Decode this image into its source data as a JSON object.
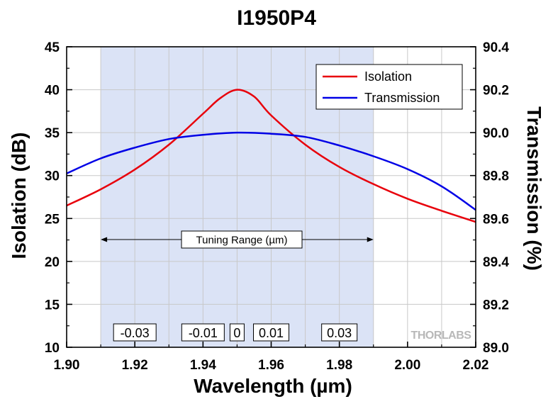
{
  "chart_data": {
    "type": "line",
    "title": "I1950P4",
    "xlabel": "Wavelength (µm)",
    "ylabel_left": "Isolation (dB)",
    "ylabel_right": "Transmission (%)",
    "xlim": [
      1.9,
      2.02
    ],
    "ylim_left": [
      10,
      45
    ],
    "ylim_right": [
      89.0,
      90.4
    ],
    "x_ticks": [
      "1.90",
      "1.92",
      "1.94",
      "1.96",
      "1.98",
      "2.00",
      "2.02"
    ],
    "y_left_ticks": [
      "10",
      "15",
      "20",
      "25",
      "30",
      "35",
      "40",
      "45"
    ],
    "y_right_ticks": [
      "89.0",
      "89.2",
      "89.4",
      "89.6",
      "89.8",
      "90.0",
      "90.2",
      "90.4"
    ],
    "grid": true,
    "legend_position": "top-right",
    "series": [
      {
        "name": "Isolation",
        "axis": "left",
        "color": "#e8000b",
        "x": [
          1.9,
          1.91,
          1.92,
          1.93,
          1.94,
          1.945,
          1.95,
          1.955,
          1.96,
          1.97,
          1.98,
          1.99,
          2.0,
          2.01,
          2.02
        ],
        "y": [
          26.5,
          28.4,
          30.7,
          33.6,
          37.2,
          39.0,
          40.0,
          39.2,
          37.0,
          33.6,
          31.0,
          29.0,
          27.3,
          25.9,
          24.6
        ]
      },
      {
        "name": "Transmission",
        "axis": "right",
        "color": "#0000e6",
        "x": [
          1.9,
          1.91,
          1.92,
          1.93,
          1.94,
          1.95,
          1.96,
          1.97,
          1.98,
          1.99,
          2.0,
          2.01,
          2.02
        ],
        "y": [
          89.81,
          89.88,
          89.93,
          89.97,
          89.99,
          90.0,
          89.995,
          89.98,
          89.94,
          89.89,
          89.83,
          89.75,
          89.64
        ]
      }
    ],
    "shaded_region": {
      "x_start": 1.91,
      "x_end": 1.99,
      "color": "#dbe3f6",
      "label": "Tuning Range (µm)"
    },
    "offset_labels": [
      {
        "text": "-0.03",
        "x": 1.92
      },
      {
        "text": "-0.01",
        "x": 1.94
      },
      {
        "text": "0",
        "x": 1.95
      },
      {
        "text": "0.01",
        "x": 1.96
      },
      {
        "text": "0.03",
        "x": 1.98
      }
    ]
  },
  "watermark": "THORLABS"
}
